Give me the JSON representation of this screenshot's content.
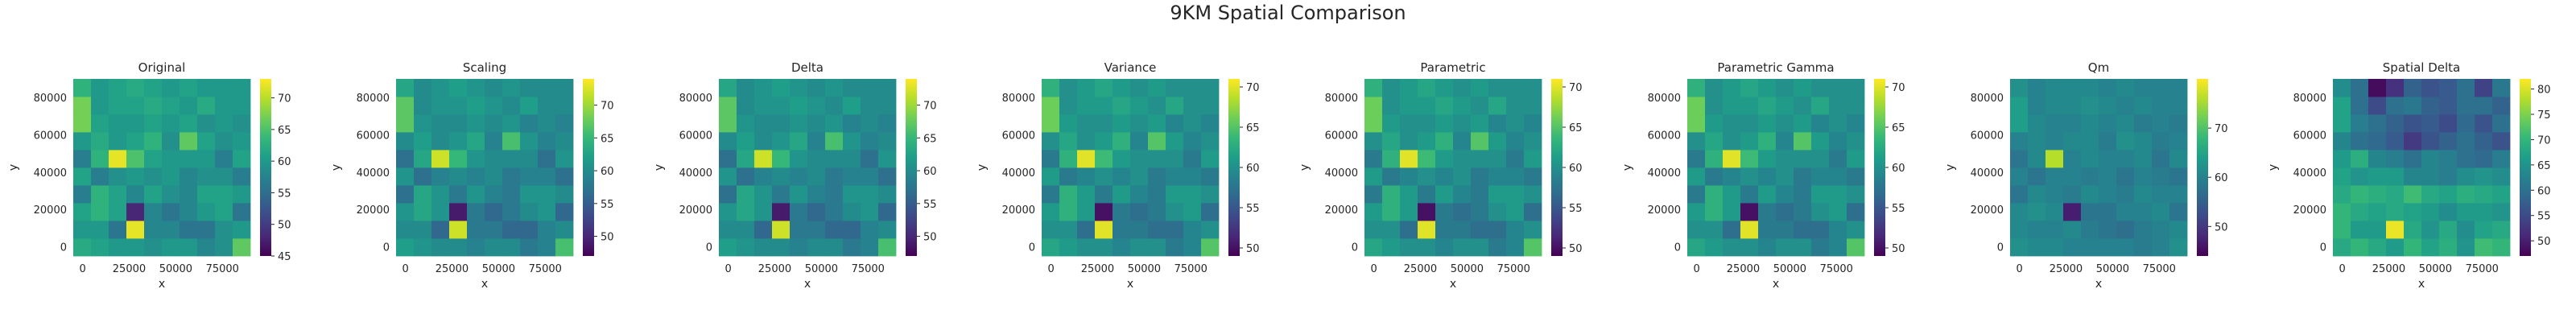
{
  "figure": {
    "suptitle": "9KM Spatial Comparison"
  },
  "colormap": [
    "#440154",
    "#482878",
    "#3e4989",
    "#31688e",
    "#26828e",
    "#1f9e89",
    "#35b779",
    "#6ece58",
    "#b5de2b",
    "#fde725"
  ],
  "chart_data": [
    {
      "type": "heatmap",
      "title": "Original",
      "xlabel": "x",
      "ylabel": "y",
      "x_ticks": [
        "0",
        "25000",
        "50000",
        "75000"
      ],
      "y_ticks": [
        "0",
        "20000",
        "40000",
        "60000",
        "80000"
      ],
      "cbar_ticks": [
        45,
        50,
        55,
        60,
        65,
        70
      ],
      "vmin": 45,
      "vmax": 73,
      "z": [
        [
          62,
          61,
          60,
          60,
          59,
          60,
          60,
          58,
          59,
          66
        ],
        [
          60,
          60,
          56,
          72,
          58,
          58,
          56,
          56,
          59,
          60
        ],
        [
          61,
          63,
          61,
          48,
          58,
          56,
          58,
          60,
          61,
          56
        ],
        [
          57,
          63,
          61,
          58,
          61,
          59,
          58,
          61,
          61,
          60
        ],
        [
          61,
          57,
          59,
          60,
          59,
          60,
          58,
          59,
          59,
          57
        ],
        [
          57,
          63,
          72,
          65,
          61,
          60,
          60,
          60,
          57,
          61
        ],
        [
          60,
          62,
          60,
          61,
          63,
          59,
          66,
          61,
          59,
          60
        ],
        [
          67,
          61,
          60,
          60,
          61,
          60,
          61,
          59,
          60,
          59
        ],
        [
          67,
          60,
          61,
          61,
          62,
          61,
          60,
          62,
          60,
          60
        ],
        [
          63,
          60,
          61,
          62,
          61,
          60,
          61,
          60,
          60,
          60
        ]
      ]
    },
    {
      "type": "heatmap",
      "title": "Scaling",
      "xlabel": "x",
      "ylabel": "y",
      "x_ticks": [
        "0",
        "25000",
        "50000",
        "75000"
      ],
      "y_ticks": [
        "0",
        "20000",
        "40000",
        "60000",
        "80000"
      ],
      "cbar_ticks": [
        50,
        55,
        60,
        65,
        70
      ],
      "vmin": 47,
      "vmax": 74,
      "z": [
        [
          62,
          61,
          60,
          60,
          59,
          60,
          60,
          58,
          59,
          66
        ],
        [
          60,
          60,
          56,
          72,
          58,
          58,
          56,
          56,
          59,
          60
        ],
        [
          61,
          63,
          61,
          49,
          58,
          56,
          58,
          60,
          61,
          56
        ],
        [
          57,
          63,
          61,
          58,
          61,
          59,
          58,
          61,
          61,
          60
        ],
        [
          61,
          57,
          59,
          60,
          59,
          60,
          58,
          59,
          59,
          57
        ],
        [
          57,
          63,
          72,
          65,
          61,
          60,
          60,
          60,
          57,
          61
        ],
        [
          60,
          62,
          60,
          61,
          63,
          59,
          66,
          61,
          59,
          60
        ],
        [
          67,
          61,
          60,
          60,
          61,
          60,
          61,
          59,
          60,
          59
        ],
        [
          67,
          60,
          61,
          61,
          62,
          61,
          60,
          62,
          60,
          60
        ],
        [
          63,
          60,
          61,
          62,
          61,
          60,
          61,
          60,
          60,
          60
        ]
      ]
    },
    {
      "type": "heatmap",
      "title": "Delta",
      "xlabel": "x",
      "ylabel": "y",
      "x_ticks": [
        "0",
        "25000",
        "50000",
        "75000"
      ],
      "y_ticks": [
        "0",
        "20000",
        "40000",
        "60000",
        "80000"
      ],
      "cbar_ticks": [
        50,
        55,
        60,
        65,
        70
      ],
      "vmin": 47,
      "vmax": 74,
      "z": [
        [
          62,
          61,
          60,
          60,
          59,
          60,
          60,
          58,
          59,
          66
        ],
        [
          60,
          60,
          56,
          72,
          58,
          58,
          56,
          56,
          59,
          60
        ],
        [
          61,
          63,
          61,
          49,
          58,
          56,
          58,
          60,
          61,
          56
        ],
        [
          57,
          63,
          61,
          58,
          61,
          59,
          58,
          61,
          61,
          60
        ],
        [
          61,
          57,
          59,
          60,
          59,
          60,
          58,
          59,
          59,
          57
        ],
        [
          57,
          63,
          72,
          65,
          61,
          60,
          60,
          60,
          57,
          61
        ],
        [
          60,
          62,
          60,
          61,
          63,
          59,
          66,
          61,
          59,
          60
        ],
        [
          67,
          61,
          60,
          60,
          61,
          60,
          61,
          59,
          60,
          59
        ],
        [
          67,
          60,
          61,
          61,
          62,
          61,
          60,
          62,
          60,
          60
        ],
        [
          63,
          60,
          61,
          62,
          61,
          60,
          61,
          60,
          60,
          60
        ]
      ]
    },
    {
      "type": "heatmap",
      "title": "Variance",
      "xlabel": "x",
      "ylabel": "y",
      "x_ticks": [
        "0",
        "25000",
        "50000",
        "75000"
      ],
      "y_ticks": [
        "0",
        "20000",
        "40000",
        "60000",
        "80000"
      ],
      "cbar_ticks": [
        50,
        55,
        60,
        65,
        70
      ],
      "vmin": 49,
      "vmax": 71,
      "z": [
        [
          62,
          61,
          60,
          60,
          59,
          60,
          60,
          58,
          59,
          65
        ],
        [
          60,
          60,
          57,
          70,
          58,
          58,
          57,
          57,
          59,
          60
        ],
        [
          61,
          63,
          61,
          50,
          58,
          57,
          58,
          60,
          61,
          57
        ],
        [
          58,
          63,
          61,
          58,
          61,
          59,
          58,
          61,
          61,
          60
        ],
        [
          61,
          58,
          59,
          60,
          59,
          60,
          58,
          59,
          59,
          58
        ],
        [
          58,
          63,
          70,
          64,
          61,
          60,
          60,
          60,
          58,
          61
        ],
        [
          60,
          62,
          60,
          61,
          63,
          59,
          65,
          61,
          59,
          60
        ],
        [
          66,
          61,
          60,
          60,
          61,
          60,
          61,
          59,
          60,
          59
        ],
        [
          66,
          60,
          61,
          61,
          62,
          61,
          60,
          62,
          60,
          60
        ],
        [
          63,
          60,
          61,
          62,
          61,
          60,
          61,
          60,
          60,
          60
        ]
      ]
    },
    {
      "type": "heatmap",
      "title": "Parametric",
      "xlabel": "x",
      "ylabel": "y",
      "x_ticks": [
        "0",
        "25000",
        "50000",
        "75000"
      ],
      "y_ticks": [
        "0",
        "20000",
        "40000",
        "60000",
        "80000"
      ],
      "cbar_ticks": [
        50,
        55,
        60,
        65,
        70
      ],
      "vmin": 49,
      "vmax": 71,
      "z": [
        [
          62,
          61,
          60,
          60,
          59,
          60,
          60,
          58,
          59,
          65
        ],
        [
          60,
          60,
          57,
          70,
          58,
          58,
          57,
          57,
          59,
          60
        ],
        [
          61,
          63,
          61,
          50,
          58,
          57,
          58,
          60,
          61,
          57
        ],
        [
          58,
          63,
          61,
          58,
          61,
          59,
          58,
          61,
          61,
          60
        ],
        [
          61,
          58,
          59,
          60,
          59,
          60,
          58,
          59,
          59,
          58
        ],
        [
          58,
          63,
          70,
          64,
          61,
          60,
          60,
          60,
          58,
          61
        ],
        [
          60,
          62,
          60,
          61,
          63,
          59,
          65,
          61,
          59,
          60
        ],
        [
          66,
          61,
          60,
          60,
          61,
          60,
          61,
          59,
          60,
          59
        ],
        [
          66,
          60,
          61,
          61,
          62,
          61,
          60,
          62,
          60,
          60
        ],
        [
          63,
          60,
          61,
          62,
          61,
          60,
          61,
          60,
          60,
          60
        ]
      ]
    },
    {
      "type": "heatmap",
      "title": "Parametric Gamma",
      "xlabel": "x",
      "ylabel": "y",
      "x_ticks": [
        "0",
        "25000",
        "50000",
        "75000"
      ],
      "y_ticks": [
        "0",
        "20000",
        "40000",
        "60000",
        "80000"
      ],
      "cbar_ticks": [
        50,
        55,
        60,
        65,
        70
      ],
      "vmin": 49,
      "vmax": 71,
      "z": [
        [
          62,
          61,
          60,
          60,
          59,
          60,
          60,
          58,
          59,
          65
        ],
        [
          60,
          60,
          57,
          70,
          58,
          58,
          57,
          57,
          59,
          60
        ],
        [
          61,
          63,
          61,
          50,
          58,
          57,
          58,
          60,
          61,
          57
        ],
        [
          58,
          63,
          61,
          58,
          61,
          59,
          58,
          61,
          61,
          60
        ],
        [
          61,
          58,
          59,
          60,
          59,
          60,
          58,
          59,
          59,
          58
        ],
        [
          58,
          63,
          70,
          64,
          61,
          60,
          60,
          60,
          58,
          61
        ],
        [
          60,
          62,
          60,
          61,
          63,
          59,
          65,
          61,
          59,
          60
        ],
        [
          66,
          61,
          60,
          60,
          61,
          60,
          61,
          59,
          60,
          59
        ],
        [
          66,
          60,
          61,
          61,
          62,
          61,
          60,
          62,
          60,
          60
        ],
        [
          63,
          60,
          61,
          62,
          61,
          60,
          61,
          60,
          60,
          60
        ]
      ]
    },
    {
      "type": "heatmap",
      "title": "Qm",
      "xlabel": "x",
      "ylabel": "y",
      "x_ticks": [
        "0",
        "25000",
        "50000",
        "75000"
      ],
      "y_ticks": [
        "0",
        "20000",
        "40000",
        "60000",
        "80000"
      ],
      "cbar_ticks": [
        50,
        60,
        70
      ],
      "vmin": 44,
      "vmax": 80,
      "z": [
        [
          62,
          61,
          61,
          60,
          60,
          60,
          60,
          59,
          60,
          62
        ],
        [
          61,
          60,
          60,
          61,
          59,
          58,
          57,
          59,
          60,
          61
        ],
        [
          61,
          62,
          61,
          47,
          58,
          58,
          60,
          60,
          61,
          58
        ],
        [
          58,
          61,
          60,
          59,
          61,
          60,
          59,
          61,
          60,
          60
        ],
        [
          60,
          58,
          60,
          60,
          59,
          60,
          58,
          60,
          59,
          58
        ],
        [
          58,
          61,
          76,
          60,
          61,
          60,
          60,
          61,
          58,
          61
        ],
        [
          60,
          61,
          60,
          61,
          61,
          59,
          62,
          61,
          59,
          60
        ],
        [
          64,
          61,
          60,
          60,
          61,
          60,
          61,
          59,
          60,
          59
        ],
        [
          64,
          60,
          61,
          61,
          62,
          61,
          60,
          61,
          60,
          60
        ],
        [
          62,
          60,
          61,
          61,
          61,
          60,
          61,
          60,
          60,
          60
        ]
      ]
    },
    {
      "type": "heatmap",
      "title": "Spatial Delta",
      "xlabel": "x",
      "ylabel": "y",
      "x_ticks": [
        "0",
        "25000",
        "50000",
        "75000"
      ],
      "y_ticks": [
        "0",
        "20000",
        "40000",
        "60000",
        "80000"
      ],
      "cbar_ticks": [
        50,
        55,
        60,
        65,
        70,
        75,
        80
      ],
      "vmin": 47,
      "vmax": 82,
      "z": [
        [
          68,
          70,
          68,
          66,
          70,
          67,
          69,
          65,
          71,
          70
        ],
        [
          70,
          66,
          66,
          81,
          68,
          65,
          68,
          64,
          67,
          68
        ],
        [
          70,
          68,
          67,
          68,
          67,
          66,
          64,
          66,
          66,
          65
        ],
        [
          68,
          70,
          69,
          68,
          71,
          68,
          67,
          69,
          68,
          67
        ],
        [
          67,
          65,
          66,
          66,
          63,
          63,
          62,
          64,
          65,
          64
        ],
        [
          66,
          69,
          63,
          62,
          60,
          63,
          62,
          60,
          59,
          62
        ],
        [
          63,
          60,
          59,
          57,
          53,
          56,
          58,
          60,
          58,
          56
        ],
        [
          67,
          62,
          60,
          58,
          56,
          57,
          55,
          59,
          56,
          60
        ],
        [
          67,
          60,
          55,
          60,
          61,
          58,
          57,
          60,
          60,
          58
        ],
        [
          64,
          60,
          48,
          52,
          58,
          56,
          57,
          60,
          54,
          61
        ]
      ]
    }
  ]
}
